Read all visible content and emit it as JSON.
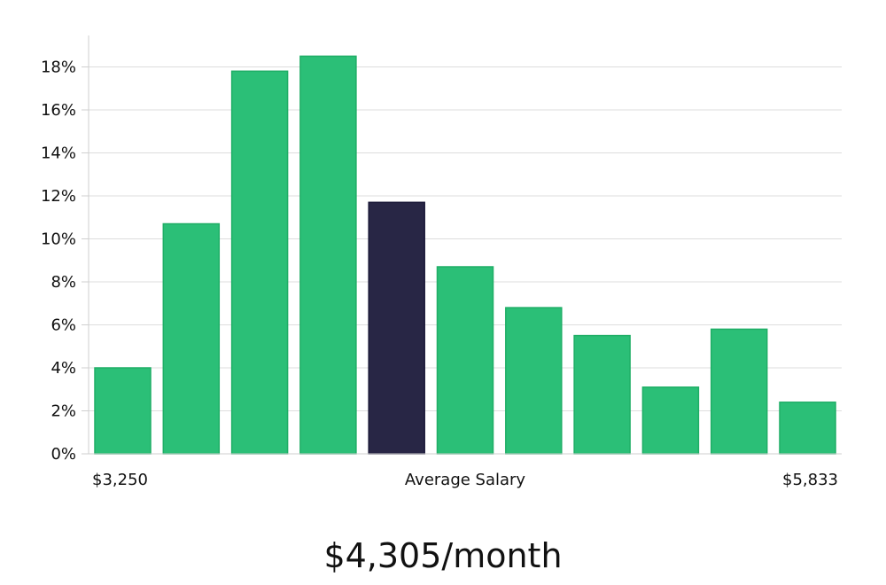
{
  "chart_data": {
    "type": "bar",
    "values": [
      4.0,
      10.7,
      17.8,
      18.5,
      11.7,
      8.7,
      6.8,
      5.5,
      3.1,
      5.8,
      2.4
    ],
    "highlight_index": 4,
    "x_min_label": "$3,250",
    "x_center_label": "Average Salary",
    "x_max_label": "$5,833",
    "y_ticks": [
      "0%",
      "2%",
      "4%",
      "6%",
      "8%",
      "10%",
      "12%",
      "14%",
      "16%",
      "18%"
    ],
    "ylim": [
      0,
      19.5
    ],
    "grid": true,
    "colors": {
      "bar": "#2bbf77",
      "bar_border": "#1fae66",
      "highlight": "#282645"
    }
  },
  "headline": "$4,305/month"
}
